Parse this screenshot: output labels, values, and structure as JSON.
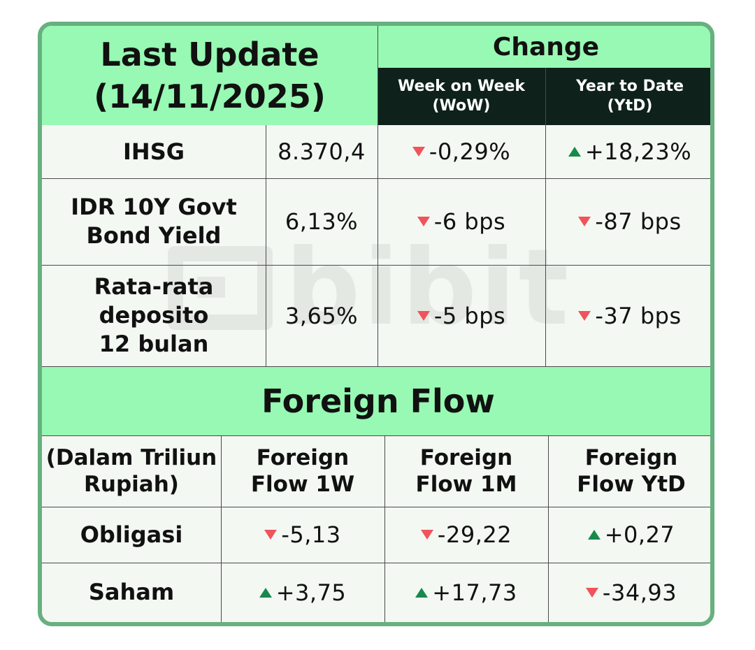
{
  "header": {
    "last_update_line1": "Last Update",
    "last_update_line2": "(14/11/2025)",
    "change": "Change",
    "wow_line1": "Week on Week",
    "wow_line2": "(WoW)",
    "ytd_line1": "Year to Date",
    "ytd_line2": "(YtD)"
  },
  "market_rows": [
    {
      "label_lines": [
        "IHSG"
      ],
      "value": "8.370,4",
      "wow": "-0,29%",
      "wow_dir": "down",
      "ytd": "+18,23%",
      "ytd_dir": "up"
    },
    {
      "label_lines": [
        "IDR 10Y Govt",
        "Bond Yield"
      ],
      "value": "6,13%",
      "wow": "-6 bps",
      "wow_dir": "down",
      "ytd": "-87 bps",
      "ytd_dir": "down"
    },
    {
      "label_lines": [
        "Rata-rata",
        "deposito",
        "12 bulan"
      ],
      "value": "3,65%",
      "wow": "-5 bps",
      "wow_dir": "down",
      "ytd": "-37 bps",
      "ytd_dir": "down"
    }
  ],
  "foreign_flow": {
    "title": "Foreign Flow",
    "unit_line1": "(Dalam Triliun",
    "unit_line2": "Rupiah)",
    "col_1w_line1": "Foreign",
    "col_1w_line2": "Flow 1W",
    "col_1m_line1": "Foreign",
    "col_1m_line2": "Flow 1M",
    "col_ytd_line1": "Foreign",
    "col_ytd_line2": "Flow YtD",
    "rows": [
      {
        "label": "Obligasi",
        "w1": "-5,13",
        "w1_dir": "down",
        "m1": "-29,22",
        "m1_dir": "down",
        "ytd": "+0,27",
        "ytd_dir": "up"
      },
      {
        "label": "Saham",
        "w1": "+3,75",
        "w1_dir": "up",
        "m1": "+17,73",
        "m1_dir": "up",
        "ytd": "-34,93",
        "ytd_dir": "down"
      }
    ]
  },
  "watermark": "bibit",
  "colors": {
    "header_green": "#97f9b3",
    "header_dark": "#0e211b",
    "border": "#67b07f",
    "down": "#f0545a",
    "up": "#178a4a"
  }
}
